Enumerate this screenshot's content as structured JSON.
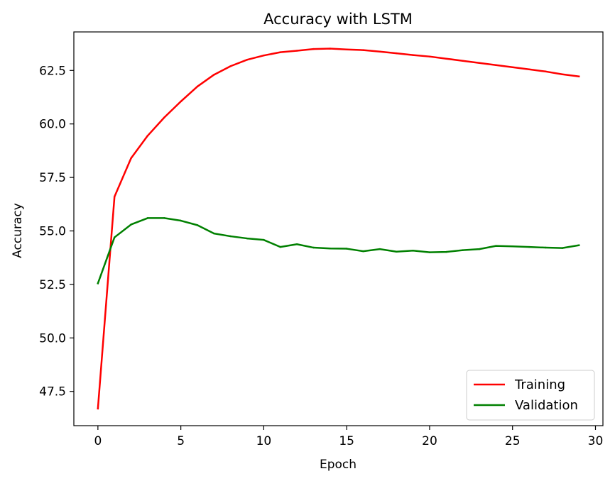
{
  "chart_data": {
    "type": "line",
    "title": "Accuracy with LSTM",
    "xlabel": "Epoch",
    "ylabel": "Accuracy",
    "xlim": [
      -1.45,
      30.45
    ],
    "ylim": [
      45.9,
      64.3
    ],
    "xticks": [
      0,
      5,
      10,
      15,
      20,
      25,
      30
    ],
    "yticks": [
      47.5,
      50.0,
      52.5,
      55.0,
      57.5,
      60.0,
      62.5
    ],
    "ytick_labels": [
      "47.5",
      "50.0",
      "52.5",
      "55.0",
      "57.5",
      "60.0",
      "62.5"
    ],
    "grid": false,
    "legend_position": "lower-right",
    "x": [
      0,
      1,
      2,
      3,
      4,
      5,
      6,
      7,
      8,
      9,
      10,
      11,
      12,
      13,
      14,
      15,
      16,
      17,
      18,
      19,
      20,
      21,
      22,
      23,
      24,
      25,
      26,
      27,
      28,
      29
    ],
    "series": [
      {
        "name": "Training",
        "color": "#ff0000",
        "values": [
          46.7,
          56.6,
          58.4,
          59.45,
          60.3,
          61.05,
          61.75,
          62.3,
          62.7,
          63.0,
          63.2,
          63.35,
          63.42,
          63.5,
          63.52,
          63.48,
          63.45,
          63.38,
          63.3,
          63.22,
          63.15,
          63.05,
          62.95,
          62.85,
          62.75,
          62.65,
          62.55,
          62.45,
          62.32,
          62.22
        ]
      },
      {
        "name": "Validation",
        "color": "#008000",
        "values": [
          52.55,
          54.7,
          55.3,
          55.6,
          55.6,
          55.48,
          55.27,
          54.88,
          54.75,
          54.65,
          54.58,
          54.25,
          54.38,
          54.22,
          54.18,
          54.17,
          54.05,
          54.15,
          54.03,
          54.08,
          54.0,
          54.02,
          54.1,
          54.15,
          54.3,
          54.28,
          54.25,
          54.22,
          54.2,
          54.33
        ]
      }
    ]
  }
}
